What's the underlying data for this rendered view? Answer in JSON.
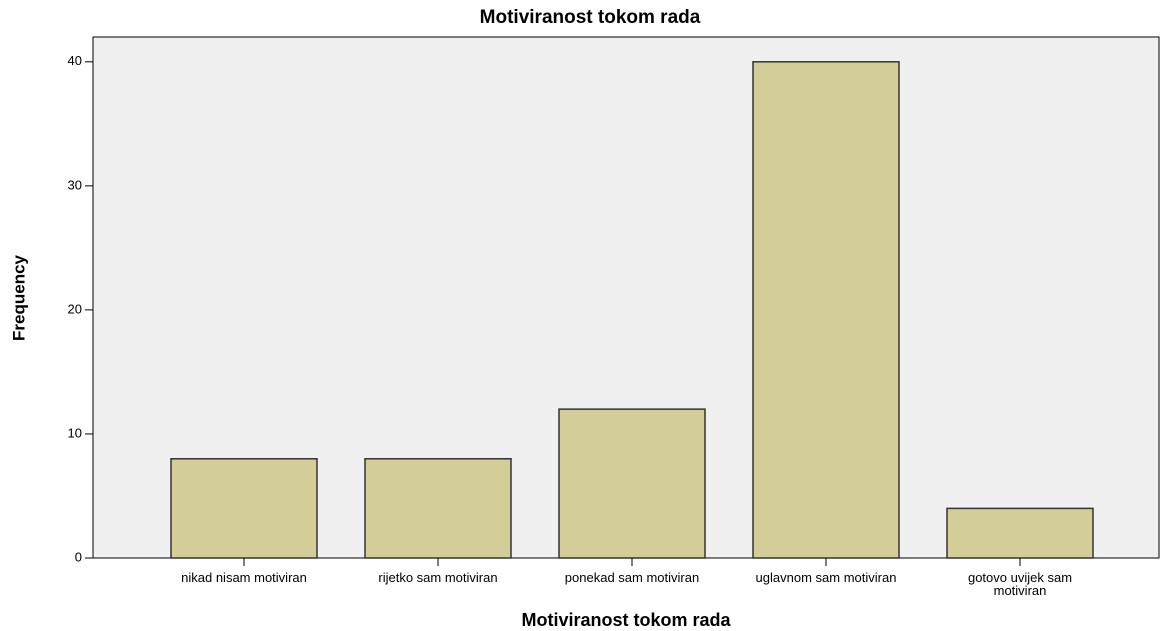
{
  "chart_data": {
    "type": "bar",
    "title": "Motiviranost tokom rada",
    "x_label": "Motiviranost tokom rada",
    "y_label": "Frequency",
    "categories": [
      "nikad nisam motiviran",
      "rijetko sam motiviran",
      "ponekad sam motiviran",
      "uglavnom sam motiviran",
      "gotovo uvijek sam motiviran"
    ],
    "values": [
      8,
      8,
      12,
      40,
      4
    ],
    "color": "#d3ce97",
    "ylim": [
      0,
      42
    ],
    "yticks": [
      0,
      10,
      20,
      30,
      40
    ],
    "grid": false
  }
}
